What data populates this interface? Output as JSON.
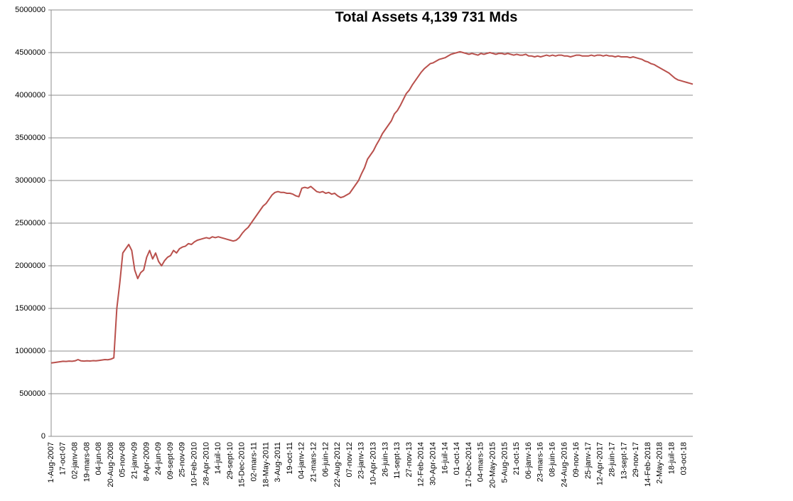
{
  "chart_data": {
    "type": "line",
    "title": "Total Assets 4,139 731 Mds",
    "categories": [
      "1-Aug-2007",
      null,
      null,
      null,
      "17-oct-07",
      null,
      null,
      null,
      "02-janv-08",
      null,
      null,
      null,
      "19-mars-08",
      null,
      null,
      null,
      "04-jun-08",
      null,
      null,
      null,
      "20-Aug-2008",
      null,
      null,
      null,
      "05-nov-08",
      null,
      null,
      null,
      "21-janv-09",
      null,
      null,
      null,
      "8-Apr-2009",
      null,
      null,
      null,
      "24-jun-09",
      null,
      null,
      null,
      "09-sept-09",
      null,
      null,
      null,
      "25-nov-09",
      null,
      null,
      null,
      "10-Feb-2010",
      null,
      null,
      null,
      "28-Apr-2010",
      null,
      null,
      null,
      "14-juil-10",
      null,
      null,
      null,
      "29-sept-10",
      null,
      null,
      null,
      "15-Dec-2010",
      null,
      null,
      null,
      "02-mars-11",
      null,
      null,
      null,
      "18-May-2011",
      null,
      null,
      null,
      "3-Aug-2011",
      null,
      null,
      null,
      "19-oct-11",
      null,
      null,
      null,
      "04-janv-12",
      null,
      null,
      null,
      "21-mars-12",
      null,
      null,
      null,
      "06-juin-12",
      null,
      null,
      null,
      "22-Aug-2012",
      null,
      null,
      null,
      "07-nov-12",
      null,
      null,
      null,
      "23-janv-13",
      null,
      null,
      null,
      "10-Apr-2013",
      null,
      null,
      null,
      "26-juin-13",
      null,
      null,
      null,
      "11-sept-13",
      null,
      null,
      null,
      "27-nov-13",
      null,
      null,
      null,
      "12-Feb-2014",
      null,
      null,
      null,
      "30-Apr-2014",
      null,
      null,
      null,
      "16-juil-14",
      null,
      null,
      null,
      "01-oct-14",
      null,
      null,
      null,
      "17-Dec-2014",
      null,
      null,
      null,
      "04-mars-15",
      null,
      null,
      null,
      "20-May-2015",
      null,
      null,
      null,
      "5-Aug-2015",
      null,
      null,
      null,
      "21-oct-15",
      null,
      null,
      null,
      "06-janv-16",
      null,
      null,
      null,
      "23-mars-16",
      null,
      null,
      null,
      "08-juin-16",
      null,
      null,
      null,
      "24-Aug-2016",
      null,
      null,
      null,
      "09-nov-16",
      null,
      null,
      null,
      "25-janv-17",
      null,
      null,
      null,
      "12-Apr-2017",
      null,
      null,
      null,
      "28-juin-17",
      null,
      null,
      null,
      "13-sept-17",
      null,
      null,
      null,
      "29-nov-17",
      null,
      null,
      null,
      "14-Feb-2018",
      null,
      null,
      null,
      "2-May-2018",
      null,
      null,
      null,
      "18-juil-18",
      null,
      null,
      null,
      "03-oct-18",
      null,
      null,
      null
    ],
    "values": [
      860000,
      865000,
      870000,
      875000,
      880000,
      878000,
      882000,
      880000,
      885000,
      900000,
      885000,
      882000,
      885000,
      883000,
      887000,
      885000,
      890000,
      895000,
      900000,
      898000,
      905000,
      920000,
      1500000,
      1800000,
      2150000,
      2200000,
      2250000,
      2180000,
      1950000,
      1850000,
      1920000,
      1950000,
      2100000,
      2180000,
      2080000,
      2150000,
      2050000,
      2000000,
      2060000,
      2100000,
      2120000,
      2180000,
      2150000,
      2200000,
      2220000,
      2230000,
      2260000,
      2250000,
      2280000,
      2300000,
      2310000,
      2320000,
      2330000,
      2320000,
      2340000,
      2330000,
      2340000,
      2330000,
      2320000,
      2310000,
      2300000,
      2290000,
      2300000,
      2330000,
      2380000,
      2420000,
      2450000,
      2500000,
      2550000,
      2600000,
      2650000,
      2700000,
      2730000,
      2780000,
      2830000,
      2860000,
      2870000,
      2860000,
      2860000,
      2850000,
      2850000,
      2840000,
      2820000,
      2810000,
      2910000,
      2920000,
      2910000,
      2930000,
      2900000,
      2870000,
      2860000,
      2870000,
      2850000,
      2860000,
      2840000,
      2850000,
      2820000,
      2800000,
      2810000,
      2830000,
      2850000,
      2900000,
      2950000,
      3000000,
      3080000,
      3150000,
      3250000,
      3300000,
      3350000,
      3420000,
      3480000,
      3550000,
      3600000,
      3650000,
      3700000,
      3780000,
      3820000,
      3880000,
      3950000,
      4020000,
      4060000,
      4120000,
      4170000,
      4220000,
      4270000,
      4310000,
      4340000,
      4370000,
      4380000,
      4400000,
      4420000,
      4430000,
      4440000,
      4460000,
      4480000,
      4490000,
      4500000,
      4510000,
      4500000,
      4490000,
      4480000,
      4490000,
      4480000,
      4470000,
      4490000,
      4480000,
      4490000,
      4500000,
      4490000,
      4480000,
      4490000,
      4490000,
      4480000,
      4490000,
      4480000,
      4470000,
      4480000,
      4470000,
      4470000,
      4480000,
      4460000,
      4460000,
      4450000,
      4460000,
      4450000,
      4460000,
      4470000,
      4460000,
      4470000,
      4460000,
      4470000,
      4470000,
      4460000,
      4460000,
      4450000,
      4460000,
      4470000,
      4470000,
      4460000,
      4460000,
      4460000,
      4470000,
      4460000,
      4470000,
      4470000,
      4460000,
      4470000,
      4460000,
      4460000,
      4450000,
      4460000,
      4450000,
      4450000,
      4450000,
      4440000,
      4450000,
      4440000,
      4430000,
      4420000,
      4400000,
      4390000,
      4370000,
      4360000,
      4340000,
      4320000,
      4300000,
      4280000,
      4260000,
      4230000,
      4200000,
      4180000,
      4170000,
      4160000,
      4150000,
      4140000,
      4130000
    ],
    "color": "#b9504c",
    "ylim": [
      0,
      5000000
    ],
    "yticks": [
      0,
      500000,
      1000000,
      1500000,
      2000000,
      2500000,
      3000000,
      3500000,
      4000000,
      4500000,
      5000000
    ],
    "grid": true
  }
}
